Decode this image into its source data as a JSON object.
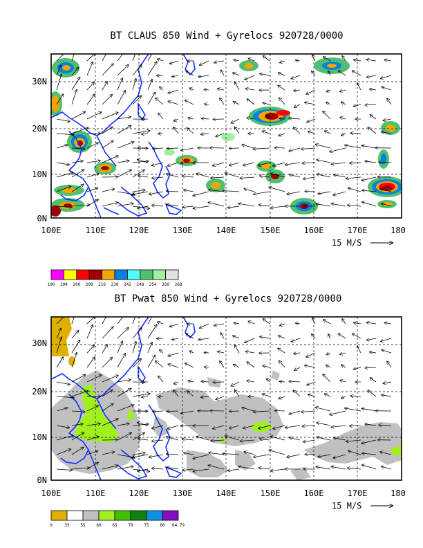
{
  "top_panel": {
    "title": "BT CLAUS 850 Wind + Gyrelocs 920728/0000",
    "y_ticks": [
      "0N",
      "10N",
      "20N",
      "30N"
    ],
    "x_ticks": [
      "100E",
      "110E",
      "120E",
      "130E",
      "140E",
      "150E",
      "160E",
      "170E",
      "180"
    ],
    "vector_ref": "15 M/S",
    "colorbar": {
      "labels": [
        "190",
        "194",
        "200",
        "208",
        "216",
        "230",
        "242",
        "248",
        "254",
        "260",
        "268"
      ],
      "colors": [
        "#ff00ff",
        "#ffff00",
        "#ff0000",
        "#a00000",
        "#f0a800",
        "#0080e0",
        "#50ffff",
        "#50c070",
        "#a0f0a0",
        "#e0e0e0"
      ]
    }
  },
  "bottom_panel": {
    "title": "BT Pwat 850 Wind + Gyrelocs 920728/0000",
    "y_ticks": [
      "0N",
      "10N",
      "20N",
      "30N"
    ],
    "x_ticks": [
      "100E",
      "110E",
      "120E",
      "130E",
      "140E",
      "150E",
      "160E",
      "170E",
      "180"
    ],
    "vector_ref": "15 M/S",
    "colorbar": {
      "labels": [
        "0",
        "35",
        "55",
        "60",
        "65",
        "70",
        "75",
        "80",
        "64.79"
      ],
      "colors": [
        "#e0b000",
        "#ffffff",
        "#c0c0c0",
        "#a0f020",
        "#40c000",
        "#108010",
        "#1090e0",
        "#8010c0"
      ]
    }
  },
  "colors": {
    "coast": "#1030ff",
    "grid": "#000000"
  }
}
